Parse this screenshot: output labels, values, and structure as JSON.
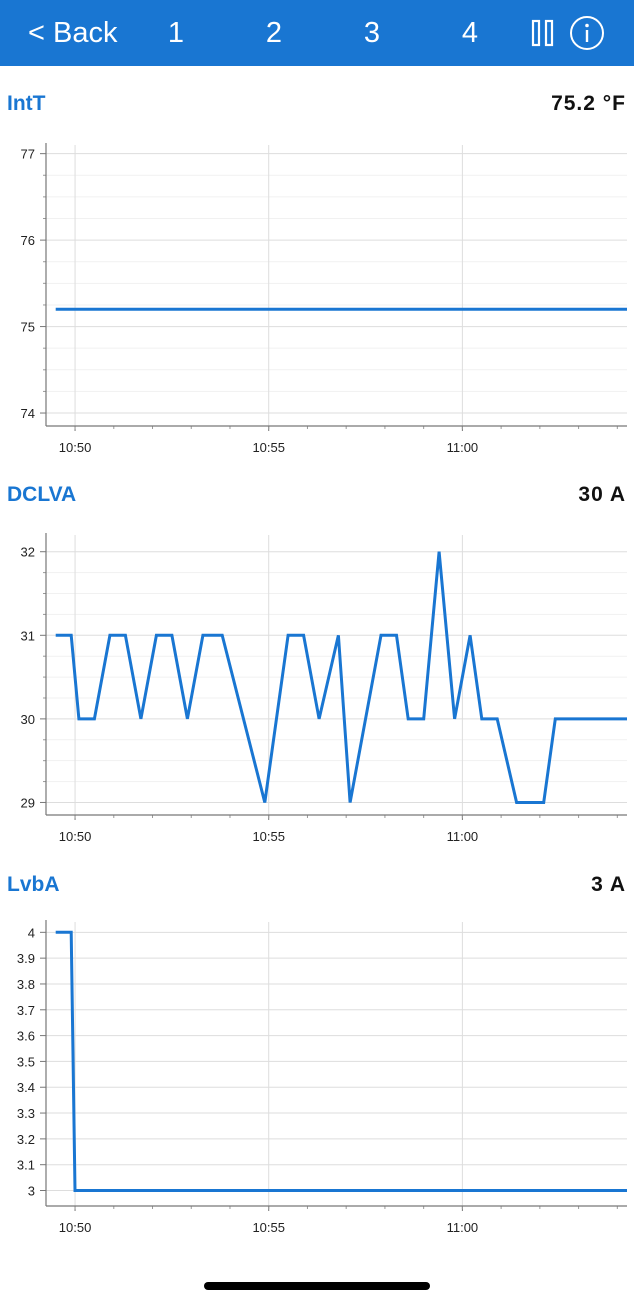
{
  "nav": {
    "back_label": "< Back",
    "tabs": [
      "1",
      "2",
      "3",
      "4"
    ],
    "pause_icon": "pause-icon",
    "info_icon": "info-icon",
    "bar_color": "#1976d2"
  },
  "line_color": "#1976d2",
  "charts": [
    {
      "title": "IntT",
      "value": "75.2 °F"
    },
    {
      "title": "DCLVA",
      "value": "30 A"
    },
    {
      "title": "LvbA",
      "value": "3 A"
    }
  ],
  "chart_data": [
    {
      "type": "line",
      "title": "IntT",
      "x_format": "time",
      "xlim": [
        "10:49:15",
        "11:04:15"
      ],
      "ylim": [
        73.85,
        77.1
      ],
      "yticks": [
        "74",
        "75",
        "76",
        "77"
      ],
      "xticks": [
        "10:50",
        "10:55",
        "11:00"
      ],
      "grid": true,
      "series": [
        {
          "x": [
            "10:49:30",
            "11:04:15"
          ],
          "y": [
            75.2,
            75.2
          ]
        }
      ]
    },
    {
      "type": "line",
      "title": "DCLVA",
      "x_format": "time",
      "xlim": [
        "10:49:15",
        "11:04:15"
      ],
      "ylim": [
        28.85,
        32.2
      ],
      "yticks": [
        "29",
        "30",
        "31",
        "32"
      ],
      "xticks": [
        "10:50",
        "10:55",
        "11:00"
      ],
      "grid": true,
      "series": [
        {
          "x": [
            "10:49:30",
            "10:49:54",
            "10:50:06",
            "10:50:30",
            "10:50:54",
            "10:51:18",
            "10:51:42",
            "10:52:06",
            "10:52:30",
            "10:52:54",
            "10:53:18",
            "10:53:48",
            "10:54:54",
            "10:55:30",
            "10:55:54",
            "10:56:18",
            "10:56:48",
            "10:57:06",
            "10:57:54",
            "10:58:18",
            "10:58:36",
            "10:59:00",
            "10:59:24",
            "10:59:48",
            "11:00:12",
            "11:00:30",
            "11:00:54",
            "11:01:24",
            "11:02:06",
            "11:02:24",
            "11:04:15"
          ],
          "y": [
            31,
            31,
            30,
            30,
            31,
            31,
            30,
            31,
            31,
            30,
            31,
            31,
            29,
            31,
            31,
            30,
            31,
            29,
            31,
            31,
            30,
            30,
            32,
            30,
            31,
            30,
            30,
            29,
            29,
            30,
            30
          ]
        }
      ]
    },
    {
      "type": "line",
      "title": "LvbA",
      "x_format": "time",
      "xlim": [
        "10:49:15",
        "11:04:15"
      ],
      "ylim": [
        2.94,
        4.04
      ],
      "yticks": [
        "3",
        "3.1",
        "3.2",
        "3.3",
        "3.4",
        "3.5",
        "3.6",
        "3.7",
        "3.8",
        "3.9",
        "4"
      ],
      "xticks": [
        "10:50",
        "10:55",
        "11:00"
      ],
      "grid": true,
      "series": [
        {
          "x": [
            "10:49:30",
            "10:49:54",
            "10:50:00",
            "11:04:15"
          ],
          "y": [
            4,
            4,
            3,
            3
          ]
        }
      ]
    }
  ]
}
